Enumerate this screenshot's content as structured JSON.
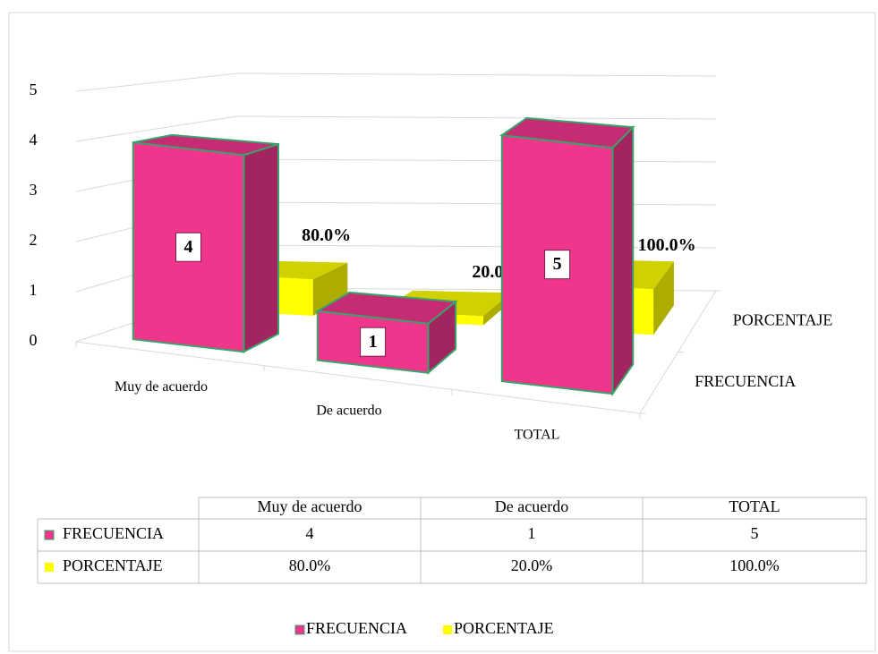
{
  "chart_data": {
    "type": "bar3d",
    "categories": [
      "Muy de acuerdo",
      "De acuerdo",
      "TOTAL"
    ],
    "series": [
      {
        "name": "FRECUENCIA",
        "color": "#f0368c",
        "values": [
          4,
          1,
          5
        ]
      },
      {
        "name": "PORCENTAJE",
        "color": "#ffff00",
        "values": [
          0.8,
          0.2,
          1.0
        ],
        "value_labels": [
          "80.0%",
          "20.0%",
          "100.0%"
        ]
      }
    ],
    "ylim": [
      0,
      5
    ],
    "yticks": [
      0,
      1,
      2,
      3,
      4,
      5
    ],
    "grid": true,
    "legend": "bottom",
    "data_table": true
  }
}
